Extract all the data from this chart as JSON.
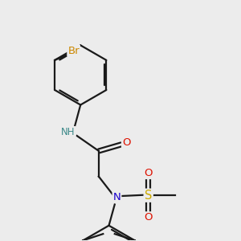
{
  "background_color": "#ececec",
  "atom_colors": {
    "C": "#1a1a1a",
    "N_amide": "#0000cc",
    "N_sulfonamide": "#1a00cc",
    "O": "#dd1100",
    "S": "#ccaa00",
    "Br": "#cc8800",
    "H": "#3a8888"
  },
  "bond_color": "#1a1a1a",
  "lw": 1.6,
  "fs": 8.5,
  "figsize": [
    3.0,
    3.0
  ],
  "dpi": 100,
  "xlim": [
    0.5,
    6.5
  ],
  "ylim": [
    0.2,
    6.8
  ]
}
